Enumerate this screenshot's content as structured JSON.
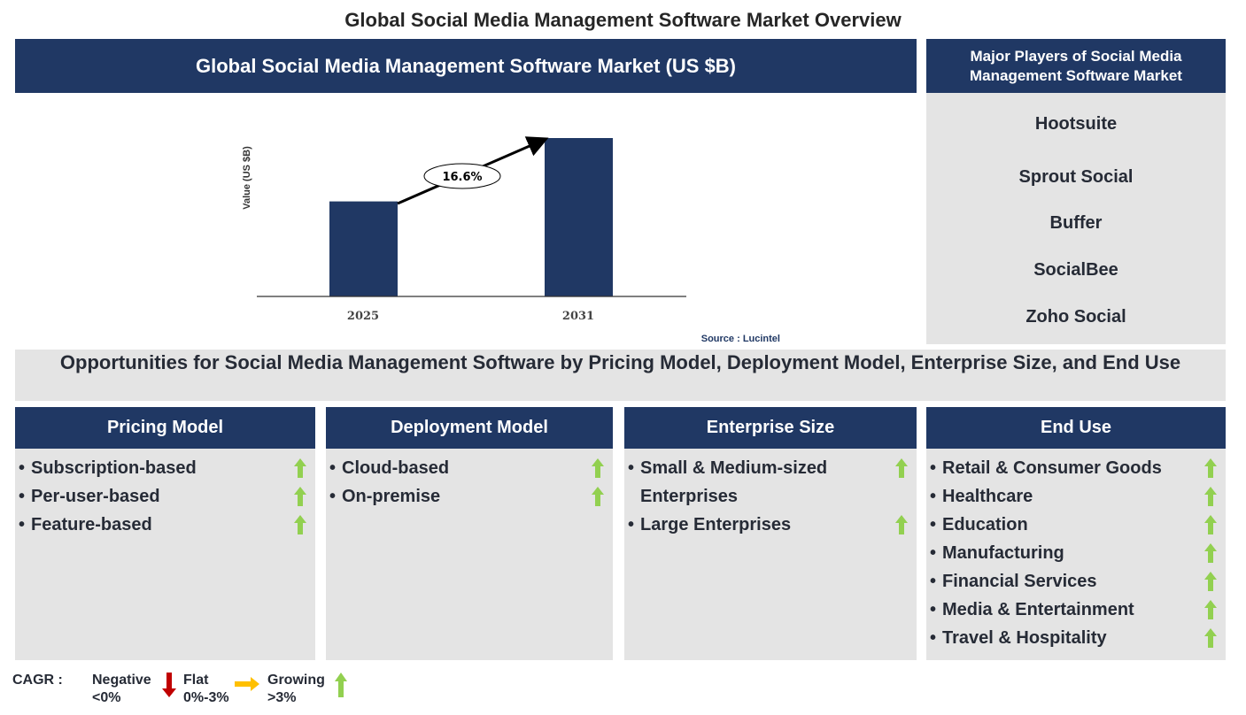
{
  "title": "Global Social Media Management Software Market Overview",
  "chart_panel": {
    "header": "Global Social Media Management Software Market (US $B)",
    "source": "Source : Lucintel"
  },
  "chart_data": {
    "type": "bar",
    "title": "Global Social Media Management Software Market (US $B)",
    "ylabel": "Value (US $B)",
    "categories": [
      "2025",
      "2031"
    ],
    "relative_height": [
      0.6,
      1.0
    ],
    "annotation": "16.6%",
    "bar_color": "#203864"
  },
  "players": {
    "header": "Major Players of Social Media Management Software Market",
    "items": [
      "Hootsuite",
      "Sprout Social",
      "Buffer",
      "SocialBee",
      "Zoho Social"
    ]
  },
  "opportunities": {
    "title": "Opportunities for Social Media Management Software by Pricing Model, Deployment Model, Enterprise Size, and End Use"
  },
  "columns": [
    {
      "header": "Pricing Model",
      "items": [
        "Subscription-based",
        "Per-user-based",
        "Feature-based"
      ]
    },
    {
      "header": "Deployment Model",
      "items": [
        "Cloud-based",
        "On-premise"
      ]
    },
    {
      "header": "Enterprise Size",
      "items": [
        "Small & Medium-sized Enterprises",
        "Large Enterprises"
      ]
    },
    {
      "header": "End Use",
      "items": [
        "Retail & Consumer Goods",
        "Healthcare",
        "Education",
        "Manufacturing",
        "Financial Services",
        "Media & Entertainment",
        "Travel & Hospitality"
      ]
    }
  ],
  "legend": {
    "label": "CAGR :",
    "negative": "Negative",
    "negative_range": "<0%",
    "flat": "Flat",
    "flat_range": "0%-3%",
    "growing": "Growing",
    "growing_range": ">3%",
    "colors": {
      "negative": "#c00000",
      "flat": "#ffc000",
      "growing": "#92d050"
    }
  }
}
